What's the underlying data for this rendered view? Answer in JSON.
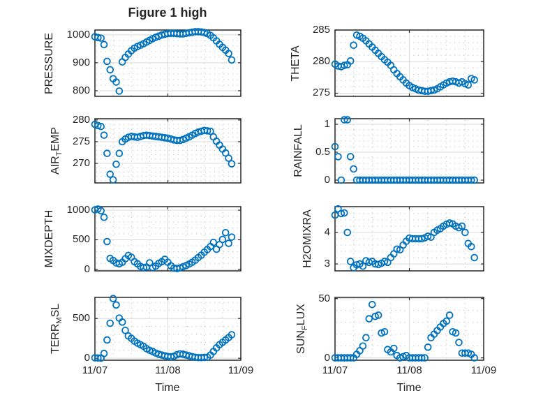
{
  "figure": {
    "title": "Figure 1 high",
    "xlabel": "Time",
    "x_tick_labels": [
      "11/07",
      "11/08",
      "11/09"
    ],
    "x_total_hours": 48,
    "x_step_hours": 1,
    "x_major_hours": [
      0,
      24,
      48
    ],
    "x_minor_hours": [
      6,
      12,
      18,
      30,
      36,
      42
    ],
    "background": "#ffffff",
    "marker_color": "#0072BD",
    "axis_color": "#262626",
    "major_grid_color": "#d9d9d9",
    "minor_grid_color": "#b5b5b5",
    "grid": "on",
    "minor_grid": "dotted"
  },
  "chart_data": [
    {
      "id": "pressure",
      "name": "PRESSURE",
      "type": "scatter",
      "row": 0,
      "col": 0,
      "ylabel_parts": [
        [
          "PRESSURE",
          0
        ]
      ],
      "ylim": [
        780,
        1017
      ],
      "yticks": [
        800,
        900,
        1000
      ],
      "ytick_labels": [
        "800",
        "900",
        "1000"
      ],
      "y_minor_step": 20,
      "values": [
        993,
        990,
        988,
        965,
        905,
        875,
        843,
        831,
        799,
        903,
        919,
        931,
        943,
        952,
        958,
        963,
        968,
        974,
        980,
        986,
        991,
        995,
        999,
        1002,
        1004,
        1005,
        1005,
        1004,
        1003,
        1003,
        1005,
        1007,
        1009,
        1011,
        1011,
        1010,
        1008,
        1004,
        998,
        989,
        978,
        966,
        955,
        945,
        933,
        910
      ]
    },
    {
      "id": "theta",
      "name": "THETA",
      "type": "scatter",
      "row": 0,
      "col": 1,
      "ylabel_parts": [
        [
          "THETA",
          0
        ]
      ],
      "ylim": [
        274.5,
        285
      ],
      "yticks": [
        275,
        280,
        285
      ],
      "ytick_labels": [
        "275",
        "280",
        "285"
      ],
      "y_minor_step": 1,
      "values": [
        279.6,
        279.3,
        279.2,
        279.4,
        279.5,
        280.1,
        282.6,
        284.2,
        284.0,
        283.7,
        283.3,
        282.8,
        282.3,
        281.8,
        281.3,
        280.8,
        280.3,
        279.9,
        279.4,
        278.7,
        278.1,
        277.6,
        277.1,
        276.6,
        276.2,
        275.9,
        275.7,
        275.5,
        275.4,
        275.3,
        275.3,
        275.4,
        275.5,
        275.7,
        276.0,
        276.3,
        276.6,
        276.8,
        276.9,
        276.8,
        276.6,
        276.8,
        276.5,
        276.3,
        277.3,
        277.1
      ]
    },
    {
      "id": "air-temp",
      "name": "AIR_TEMP",
      "type": "scatter",
      "row": 1,
      "col": 0,
      "ylabel_parts": [
        [
          "AIR",
          0
        ],
        [
          "T",
          1
        ],
        [
          "EMP",
          0
        ]
      ],
      "ylim": [
        265.5,
        280.3
      ],
      "yticks": [
        270,
        275,
        280
      ],
      "ytick_labels": [
        "270",
        "275",
        "280"
      ],
      "y_minor_step": 1,
      "values": [
        279.0,
        278.7,
        278.5,
        276.5,
        272.3,
        267.5,
        266.2,
        269.8,
        272.3,
        275.0,
        275.6,
        276.0,
        276.2,
        276.1,
        276.0,
        276.2,
        276.4,
        276.5,
        276.4,
        276.3,
        276.2,
        276.1,
        276.0,
        275.9,
        275.8,
        275.6,
        275.4,
        275.3,
        275.3,
        275.5,
        275.8,
        276.1,
        276.5,
        276.9,
        277.2,
        277.4,
        277.6,
        277.5,
        277.4,
        276.1,
        275.1,
        274.2,
        273.3,
        272.4,
        271.2,
        269.9
      ]
    },
    {
      "id": "rainfall",
      "name": "RAINFALL",
      "type": "scatter",
      "row": 1,
      "col": 1,
      "ylabel_parts": [
        [
          "RAINFALL",
          0
        ]
      ],
      "ylim": [
        -0.05,
        1.1
      ],
      "yticks": [
        0,
        0.5,
        1
      ],
      "ytick_labels": [
        "0",
        "0.5",
        "1"
      ],
      "y_minor_step": 0.1,
      "values": [
        0.6,
        0.42,
        0,
        1.08,
        1.08,
        0.42,
        0.2,
        0,
        0,
        0,
        0,
        0,
        0,
        0,
        0,
        0,
        0,
        0,
        0,
        0,
        0,
        0,
        0,
        0,
        0,
        0,
        0,
        0,
        0,
        0,
        0,
        0,
        0,
        0,
        0,
        0,
        0,
        0,
        0,
        0,
        0,
        0,
        0,
        0,
        0,
        0
      ]
    },
    {
      "id": "mixdepth",
      "name": "MIXDEPTH",
      "type": "scatter",
      "row": 2,
      "col": 0,
      "ylabel_parts": [
        [
          "MIXDEPTH",
          0
        ]
      ],
      "ylim": [
        -25,
        1060
      ],
      "yticks": [
        0,
        500,
        1000
      ],
      "ytick_labels": [
        "0",
        "500",
        "1000"
      ],
      "y_minor_step": 100,
      "values": [
        1005,
        1020,
        990,
        880,
        470,
        185,
        150,
        110,
        95,
        120,
        180,
        235,
        205,
        130,
        95,
        50,
        30,
        40,
        110,
        30,
        55,
        100,
        130,
        170,
        120,
        60,
        20,
        15,
        25,
        45,
        65,
        90,
        120,
        155,
        200,
        240,
        290,
        335,
        385,
        455,
        340,
        420,
        505,
        620,
        440,
        545
      ]
    },
    {
      "id": "h2omixra",
      "name": "H2OMIXRA",
      "type": "scatter",
      "row": 2,
      "col": 1,
      "ylabel_parts": [
        [
          "H2OMIXRA",
          0
        ]
      ],
      "ylim": [
        2.78,
        4.82
      ],
      "yticks": [
        3,
        4
      ],
      "ytick_labels": [
        "3",
        "4"
      ],
      "y_minor_step": 0.2,
      "values": [
        4.55,
        4.75,
        4.6,
        4.62,
        4.0,
        3.08,
        2.88,
        2.97,
        3.0,
        2.93,
        3.1,
        3.05,
        3.08,
        3.0,
        2.98,
        3.02,
        3.08,
        3.05,
        3.2,
        3.32,
        3.47,
        3.45,
        3.6,
        3.72,
        3.82,
        3.8,
        3.8,
        3.8,
        3.8,
        3.83,
        3.88,
        3.85,
        4.0,
        4.07,
        4.12,
        4.2,
        4.26,
        4.3,
        4.27,
        4.2,
        4.15,
        4.2,
        4.0,
        3.65,
        3.55,
        3.2
      ]
    },
    {
      "id": "terr-msl",
      "name": "TERR_MSL",
      "type": "scatter",
      "row": 3,
      "col": 0,
      "ylabel_parts": [
        [
          "TERR",
          0
        ],
        [
          "M",
          1
        ],
        [
          "SL",
          0
        ]
      ],
      "ylim": [
        -25,
        765
      ],
      "yticks": [
        0,
        500
      ],
      "ytick_labels": [
        "0",
        "500"
      ],
      "y_minor_step": 100,
      "values": [
        5,
        3,
        2,
        60,
        230,
        440,
        750,
        670,
        505,
        455,
        350,
        280,
        250,
        215,
        190,
        170,
        150,
        120,
        100,
        85,
        65,
        50,
        40,
        30,
        22,
        18,
        25,
        45,
        55,
        50,
        40,
        30,
        20,
        12,
        8,
        8,
        10,
        12,
        40,
        85,
        130,
        170,
        200,
        230,
        260,
        295
      ]
    },
    {
      "id": "sun-flux",
      "name": "SUN_FLUX",
      "type": "scatter",
      "row": 3,
      "col": 1,
      "ylabel_parts": [
        [
          "SUN",
          0
        ],
        [
          "F",
          1
        ],
        [
          "LUX",
          0
        ]
      ],
      "ylim": [
        -2,
        51
      ],
      "yticks": [
        0,
        50
      ],
      "ytick_labels": [
        "0",
        "50"
      ],
      "y_minor_step": 10,
      "values": [
        0,
        0,
        0,
        0,
        0,
        0,
        0,
        3,
        6,
        10,
        17,
        33,
        45,
        35,
        36,
        21,
        22,
        7,
        5,
        8,
        2,
        0,
        1,
        2,
        0,
        0,
        0,
        0,
        0,
        0,
        9,
        17,
        20,
        23,
        26,
        29,
        31,
        36,
        22,
        21,
        13,
        4,
        4,
        4,
        3,
        0
      ]
    }
  ]
}
